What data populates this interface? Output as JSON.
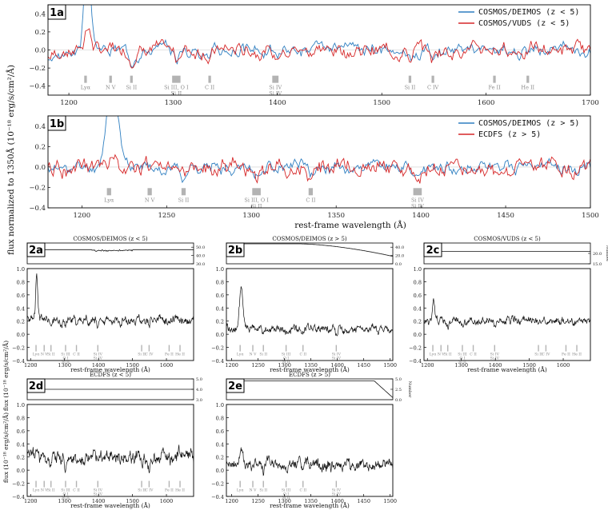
{
  "figure": {
    "shared_ylabel_top": "flux normalized to 1350Å (10⁻¹⁸ erg/s/cm²/Å)",
    "shared_xlabel_top": "rest-frame wavelength (Å)",
    "shared_ylabel_bottom": "flux (10⁻¹⁸ erg/s/cm²/Å)",
    "number_label": "Number"
  },
  "colors": {
    "blue": "#2f7fc1",
    "red": "#d62728",
    "black": "#111111",
    "gray": "#b3b3b3"
  },
  "chart_data": [
    {
      "id": "1a",
      "type": "line",
      "tag": "1a",
      "xlim": [
        1180,
        1700
      ],
      "ylim": [
        -0.5,
        0.5
      ],
      "xticks": [
        1200,
        1300,
        1400,
        1500,
        1600,
        1700
      ],
      "yticks": [
        -0.4,
        -0.2,
        0.0,
        0.2,
        0.4
      ],
      "ytick_labels": [
        "−0.4",
        "−0.2",
        "0.0",
        "0.2",
        "0.4"
      ],
      "series": [
        {
          "name": "COSMOS/DEIMOS (z < 5)",
          "color": "blue",
          "peak": 0.95,
          "noise": 0.04,
          "drift": -0.2,
          "seed": 3
        },
        {
          "name": "COSMOS/VUDS (z < 5)",
          "color": "red",
          "peak": 0.25,
          "noise": 0.045,
          "drift": -0.12,
          "seed": 7
        }
      ],
      "lines": [
        {
          "w": 1216,
          "labels": [
            "Lyα"
          ]
        },
        {
          "w": 1240,
          "labels": [
            "N V"
          ]
        },
        {
          "w": 1260,
          "labels": [
            "Si II"
          ]
        },
        {
          "w": 1303,
          "width": 8,
          "labels": [
            "Si III, O I",
            "Si II"
          ]
        },
        {
          "w": 1335,
          "labels": [
            "C II"
          ]
        },
        {
          "w": 1398,
          "width": 6,
          "labels": [
            "Si IV",
            "Si IV"
          ]
        },
        {
          "w": 1527,
          "labels": [
            "Si II"
          ]
        },
        {
          "w": 1549,
          "labels": [
            "C IV"
          ]
        },
        {
          "w": 1608,
          "labels": [
            "Fe II"
          ]
        },
        {
          "w": 1640,
          "labels": [
            "He II"
          ]
        }
      ]
    },
    {
      "id": "1b",
      "type": "line",
      "tag": "1b",
      "xlim": [
        1180,
        1500
      ],
      "ylim": [
        -0.4,
        0.5
      ],
      "xticks": [
        1200,
        1250,
        1300,
        1350,
        1400,
        1450,
        1500
      ],
      "yticks": [
        -0.4,
        -0.2,
        0.0,
        0.2,
        0.4
      ],
      "ytick_labels": [
        "−0.4",
        "−0.2",
        "0.0",
        "0.2",
        "0.4"
      ],
      "series": [
        {
          "name": "COSMOS/DEIMOS (z > 5)",
          "color": "blue",
          "peak": 0.9,
          "noise": 0.035,
          "drift": -0.05,
          "seed": 11
        },
        {
          "name": "ECDFS (z > 5)",
          "color": "red",
          "peak": 0.1,
          "noise": 0.05,
          "drift": -0.04,
          "seed": 19
        }
      ],
      "lines": [
        {
          "w": 1216,
          "labels": [
            "Lyα"
          ]
        },
        {
          "w": 1240,
          "labels": [
            "N V"
          ]
        },
        {
          "w": 1260,
          "labels": [
            "Si II"
          ]
        },
        {
          "w": 1303,
          "width": 5,
          "labels": [
            "Si III, O I",
            "Si II"
          ]
        },
        {
          "w": 1335,
          "labels": [
            "C II"
          ]
        },
        {
          "w": 1398,
          "width": 5,
          "labels": [
            "Si IV",
            "Si IV"
          ]
        }
      ]
    },
    {
      "id": "2a",
      "type": "line",
      "tag": "2a",
      "title": "COSMOS/DEIMOS (z < 5)",
      "xlim": [
        1190,
        1680
      ],
      "ylim": [
        -0.4,
        1.0
      ],
      "xticks": [
        1200,
        1300,
        1400,
        1500,
        1600
      ],
      "yticks": [
        -0.4,
        -0.2,
        0.0,
        0.2,
        0.4,
        0.6,
        0.8,
        1.0
      ],
      "ytick_labels": [
        "−0.4",
        "−0.2",
        "0.0",
        "0.2",
        "0.4",
        "0.6",
        "0.8",
        "1.0"
      ],
      "count_ylim": [
        30,
        55
      ],
      "count_yticks": [
        30.0,
        40.0,
        50.0
      ],
      "count_ytick_labels": [
        "30.0",
        "40.0",
        "50.0"
      ],
      "count_profile": "deimos-low",
      "series": [
        {
          "name": "stack",
          "color": "black",
          "peak": 0.65,
          "noise": 0.04,
          "base": 0.22,
          "seed": 23
        }
      ],
      "lines": [
        {
          "w": 1216,
          "labels": [
            "Lyα"
          ]
        },
        {
          "w": 1240,
          "labels": [
            "N V"
          ]
        },
        {
          "w": 1260,
          "labels": [
            "Si II"
          ]
        },
        {
          "w": 1303,
          "labels": [
            "Si III",
            "O I",
            "Si II"
          ]
        },
        {
          "w": 1335,
          "labels": [
            "C II"
          ]
        },
        {
          "w": 1398,
          "labels": [
            "Si IV",
            "Si IV"
          ]
        },
        {
          "w": 1527,
          "labels": [
            "Si II"
          ]
        },
        {
          "w": 1549,
          "labels": [
            "C IV"
          ]
        },
        {
          "w": 1608,
          "labels": [
            "Fe II"
          ]
        },
        {
          "w": 1640,
          "labels": [
            "He II"
          ]
        }
      ]
    },
    {
      "id": "2b",
      "type": "line",
      "tag": "2b",
      "title": "COSMOS/DEIMOS (z > 5)",
      "xlim": [
        1190,
        1505
      ],
      "ylim": [
        -0.4,
        1.0
      ],
      "xticks": [
        1200,
        1250,
        1300,
        1350,
        1400,
        1450,
        1500
      ],
      "yticks": [
        -0.4,
        -0.2,
        0.0,
        0.2,
        0.4,
        0.6,
        0.8,
        1.0
      ],
      "ytick_labels": [
        "−0.4",
        "−0.2",
        "0.0",
        "0.2",
        "0.4",
        "0.6",
        "0.8",
        "1.0"
      ],
      "count_ylim": [
        0,
        50
      ],
      "count_yticks": [
        0.0,
        20.0,
        40.0
      ],
      "count_ytick_labels": [
        "0.0",
        "20.0",
        "40.0"
      ],
      "count_profile": "deimos-high",
      "series": [
        {
          "name": "stack",
          "color": "black",
          "peak": 0.6,
          "noise": 0.035,
          "base": 0.08,
          "seed": 29
        }
      ],
      "lines": [
        {
          "w": 1216,
          "labels": [
            "Lyα"
          ]
        },
        {
          "w": 1240,
          "labels": [
            "N V"
          ]
        },
        {
          "w": 1260,
          "labels": [
            "Si II"
          ]
        },
        {
          "w": 1303,
          "labels": [
            "Si III",
            "O I",
            "Si II"
          ]
        },
        {
          "w": 1335,
          "labels": [
            "C II"
          ]
        },
        {
          "w": 1398,
          "labels": [
            "Si IV",
            "Si IV"
          ]
        }
      ]
    },
    {
      "id": "2c",
      "type": "line",
      "tag": "2c",
      "title": "COSMOS/VUDS (z < 5)",
      "xlim": [
        1190,
        1680
      ],
      "ylim": [
        -0.4,
        1.0
      ],
      "xticks": [
        1200,
        1300,
        1400,
        1500,
        1600
      ],
      "yticks": [
        -0.4,
        -0.2,
        0.0,
        0.2,
        0.4,
        0.6,
        0.8,
        1.0
      ],
      "ytick_labels": [
        "−0.4",
        "−0.2",
        "0.0",
        "0.2",
        "0.4",
        "0.6",
        "0.8",
        "1.0"
      ],
      "count_ylim": [
        15,
        25
      ],
      "count_yticks": [
        15.0,
        20.0
      ],
      "count_ytick_labels": [
        "15.0",
        "20.0"
      ],
      "count_profile": "flat-21",
      "series": [
        {
          "name": "stack",
          "color": "black",
          "peak": 0.28,
          "noise": 0.035,
          "base": 0.2,
          "seed": 31
        }
      ],
      "lines": [
        {
          "w": 1216,
          "labels": [
            "Lyα"
          ]
        },
        {
          "w": 1240,
          "labels": [
            "N V"
          ]
        },
        {
          "w": 1260,
          "labels": [
            "Si II"
          ]
        },
        {
          "w": 1303,
          "labels": [
            "Si III",
            "O I",
            "Si II"
          ]
        },
        {
          "w": 1335,
          "labels": [
            "C II"
          ]
        },
        {
          "w": 1398,
          "labels": [
            "Si IV",
            "Si IV"
          ]
        },
        {
          "w": 1527,
          "labels": [
            "Si II"
          ]
        },
        {
          "w": 1549,
          "labels": [
            "C IV"
          ]
        },
        {
          "w": 1608,
          "labels": [
            "Fe II"
          ]
        },
        {
          "w": 1640,
          "labels": [
            "He II"
          ]
        }
      ]
    },
    {
      "id": "2d",
      "type": "line",
      "tag": "2d",
      "title": "ECDFS (z < 5)",
      "xlim": [
        1190,
        1680
      ],
      "ylim": [
        -0.4,
        1.0
      ],
      "xticks": [
        1200,
        1300,
        1400,
        1500,
        1600
      ],
      "yticks": [
        -0.4,
        -0.2,
        0.0,
        0.2,
        0.4,
        0.6,
        0.8,
        1.0
      ],
      "ytick_labels": [
        "−0.4",
        "−0.2",
        "0.0",
        "0.2",
        "0.4",
        "0.6",
        "0.8",
        "1.0"
      ],
      "count_ylim": [
        3,
        5
      ],
      "count_yticks": [
        3.0,
        4.0,
        5.0
      ],
      "count_ytick_labels": [
        "3.0",
        "4.0",
        "5.0"
      ],
      "count_profile": "flat-4",
      "series": [
        {
          "name": "stack",
          "color": "black",
          "peak": 0.15,
          "noise": 0.06,
          "base": 0.2,
          "seed": 37
        }
      ],
      "lines": [
        {
          "w": 1216,
          "labels": [
            "Lyα"
          ]
        },
        {
          "w": 1240,
          "labels": [
            "N V"
          ]
        },
        {
          "w": 1260,
          "labels": [
            "Si II"
          ]
        },
        {
          "w": 1303,
          "labels": [
            "Si III",
            "O I",
            "Si II"
          ]
        },
        {
          "w": 1335,
          "labels": [
            "C II"
          ]
        },
        {
          "w": 1398,
          "labels": [
            "Si IV",
            "Si IV"
          ]
        },
        {
          "w": 1527,
          "labels": [
            "Si II"
          ]
        },
        {
          "w": 1549,
          "labels": [
            "C IV"
          ]
        },
        {
          "w": 1608,
          "labels": [
            "Fe II"
          ]
        },
        {
          "w": 1640,
          "labels": [
            "He II"
          ]
        }
      ]
    },
    {
      "id": "2e",
      "type": "line",
      "tag": "2e",
      "title": "ECDFS (z > 5)",
      "xlim": [
        1190,
        1505
      ],
      "ylim": [
        -0.4,
        1.0
      ],
      "xticks": [
        1200,
        1250,
        1300,
        1350,
        1400,
        1450,
        1500
      ],
      "yticks": [
        -0.4,
        -0.2,
        0.0,
        0.2,
        0.4,
        0.6,
        0.8,
        1.0
      ],
      "ytick_labels": [
        "−0.4",
        "−0.2",
        "0.0",
        "0.2",
        "0.4",
        "0.6",
        "0.8",
        "1.0"
      ],
      "count_ylim": [
        0,
        5
      ],
      "count_yticks": [
        0.0,
        2.5,
        5.0
      ],
      "count_ytick_labels": [
        "0.0",
        "2.5",
        "5.0"
      ],
      "count_profile": "ecdfs-high",
      "series": [
        {
          "name": "stack",
          "color": "black",
          "peak": 0.2,
          "noise": 0.05,
          "base": 0.08,
          "seed": 41
        }
      ],
      "lines": [
        {
          "w": 1216,
          "labels": [
            "Lyα"
          ]
        },
        {
          "w": 1240,
          "labels": [
            "N V"
          ]
        },
        {
          "w": 1260,
          "labels": [
            "Si II"
          ]
        },
        {
          "w": 1303,
          "labels": [
            "Si III",
            "O I",
            "Si II"
          ]
        },
        {
          "w": 1335,
          "labels": [
            "C II"
          ]
        },
        {
          "w": 1398,
          "labels": [
            "Si IV",
            "Si IV"
          ]
        }
      ]
    }
  ]
}
